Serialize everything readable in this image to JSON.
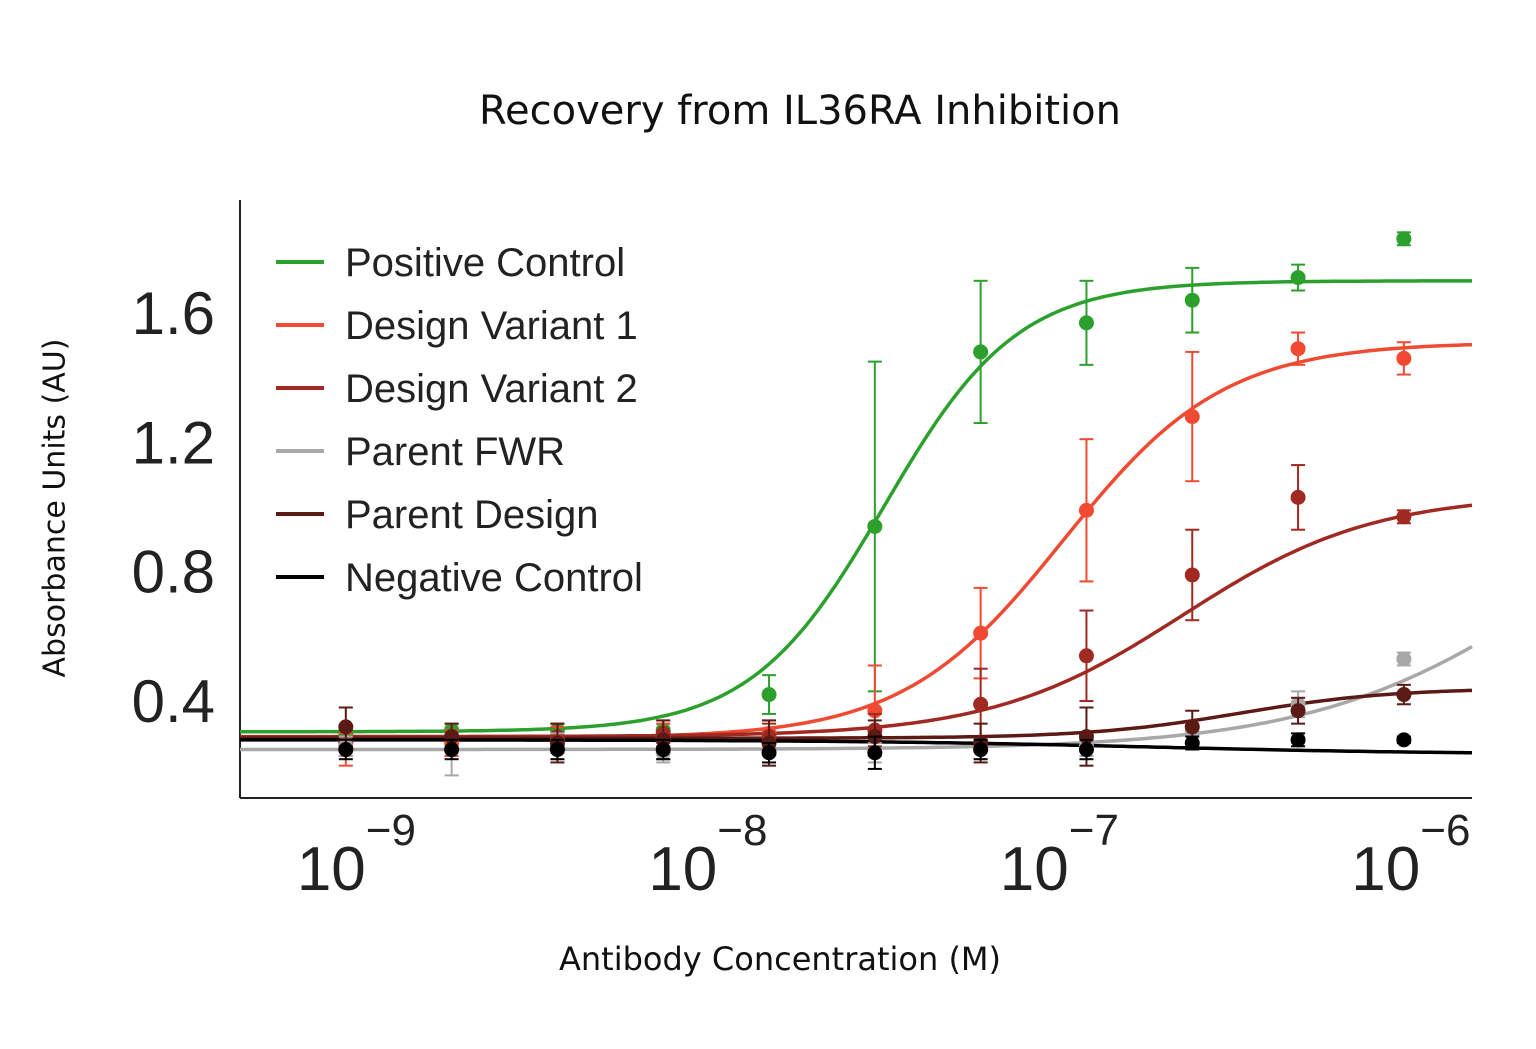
{
  "chart_data": {
    "type": "scatter",
    "title": "Recovery from IL36RA Inhibition",
    "xlabel": "Antibody Concentration (M)",
    "ylabel": "Absorbance Units (AU)",
    "x_scale": "log",
    "xlim": [
      5e-10,
      1.6e-06
    ],
    "ylim": [
      0.1,
      1.95
    ],
    "y_ticks": [
      {
        "value": 0.4,
        "label": "0.4"
      },
      {
        "value": 0.8,
        "label": "0.8"
      },
      {
        "value": 1.2,
        "label": "1.2"
      },
      {
        "value": 1.6,
        "label": "1.6"
      }
    ],
    "x_ticks": [
      {
        "value": 1e-09,
        "base": "10",
        "exp": "−9"
      },
      {
        "value": 1e-08,
        "base": "10",
        "exp": "−8"
      },
      {
        "value": 1e-07,
        "base": "10",
        "exp": "−7"
      },
      {
        "value": 1e-06,
        "base": "10",
        "exp": "−6"
      }
    ],
    "legend_position": "top-left",
    "x": [
      1e-09,
      2e-09,
      4e-09,
      8e-09,
      1.6e-08,
      3.2e-08,
      6.4e-08,
      1.28e-07,
      2.56e-07,
      5.12e-07,
      1.024e-06
    ],
    "series": [
      {
        "name": "Positive Control",
        "color": "#2ca02c",
        "y": [
          0.3,
          0.31,
          0.31,
          0.31,
          0.42,
          0.94,
          1.48,
          1.57,
          1.64,
          1.71,
          1.83
        ],
        "err": [
          0.02,
          0.02,
          0.02,
          0.02,
          0.06,
          0.51,
          0.22,
          0.13,
          0.1,
          0.04,
          0.02
        ],
        "fit": {
          "bottom": 0.305,
          "top": 1.7,
          "ec50": 3.4e-08,
          "hill": 2.3
        }
      },
      {
        "name": "Design Variant 1",
        "color": "#f04a32",
        "y": [
          0.25,
          0.27,
          0.28,
          0.29,
          0.3,
          0.37,
          0.61,
          0.99,
          1.28,
          1.49,
          1.46
        ],
        "err": [
          0.05,
          0.04,
          0.04,
          0.04,
          0.04,
          0.14,
          0.14,
          0.22,
          0.2,
          0.05,
          0.05
        ],
        "fit": {
          "bottom": 0.285,
          "top": 1.51,
          "ec50": 1.1e-07,
          "hill": 1.9
        }
      },
      {
        "name": "Design Variant 2",
        "color": "#a02a22",
        "y": [
          0.27,
          0.29,
          0.29,
          0.3,
          0.29,
          0.31,
          0.39,
          0.54,
          0.79,
          1.03,
          0.97
        ],
        "err": [
          0.04,
          0.04,
          0.04,
          0.04,
          0.04,
          0.05,
          0.11,
          0.14,
          0.14,
          0.1,
          0.02
        ],
        "fit": {
          "bottom": 0.29,
          "top": 1.04,
          "ec50": 2.4e-07,
          "hill": 1.6
        }
      },
      {
        "name": "Parent FWR",
        "color": "#a8a8a8",
        "y": [
          0.26,
          0.25,
          0.26,
          0.24,
          0.24,
          0.24,
          0.25,
          0.26,
          0.3,
          0.39,
          0.53
        ],
        "err": [
          0.03,
          0.08,
          0.04,
          0.03,
          0.03,
          0.03,
          0.03,
          0.03,
          0.03,
          0.04,
          0.02
        ],
        "fit": {
          "bottom": 0.25,
          "top": 1.3,
          "ec50": 3.2e-06,
          "hill": 1.2
        }
      },
      {
        "name": "Parent Design",
        "color": "#5c1a14",
        "y": [
          0.32,
          0.29,
          0.27,
          0.28,
          0.27,
          0.29,
          0.27,
          0.29,
          0.32,
          0.37,
          0.42
        ],
        "err": [
          0.06,
          0.04,
          0.06,
          0.06,
          0.07,
          0.05,
          0.06,
          0.09,
          0.05,
          0.04,
          0.03
        ],
        "fit": {
          "bottom": 0.285,
          "top": 0.44,
          "ec50": 3.5e-07,
          "hill": 2.0
        }
      },
      {
        "name": "Negative Control",
        "color": "#000000",
        "y": [
          0.25,
          0.25,
          0.25,
          0.25,
          0.24,
          0.24,
          0.25,
          0.25,
          0.27,
          0.28,
          0.28
        ],
        "err": [
          0.03,
          0.03,
          0.03,
          0.03,
          0.03,
          0.05,
          0.03,
          0.03,
          0.02,
          0.02,
          0.01
        ],
        "fit": {
          "bottom": 0.28,
          "top": 0.235,
          "ec50": 2e-07,
          "hill": 1.0
        }
      }
    ]
  }
}
